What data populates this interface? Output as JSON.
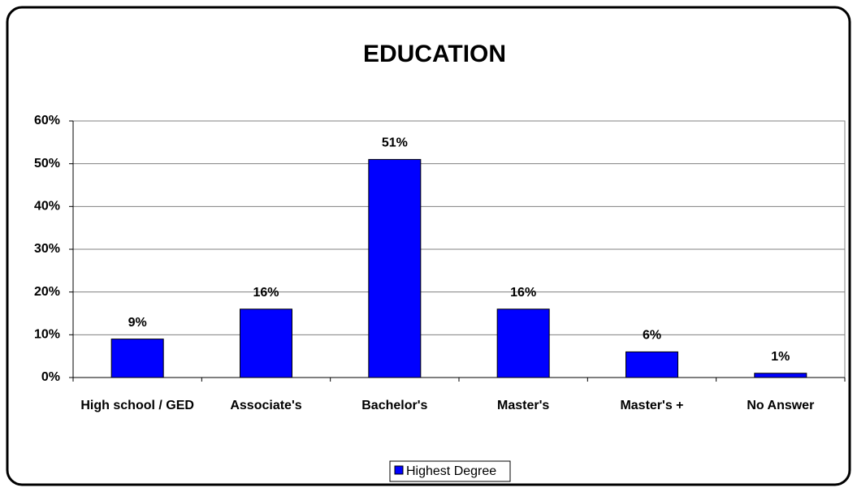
{
  "chart_data": {
    "type": "bar",
    "title": "EDUCATION",
    "categories": [
      "High school / GED",
      "Associate's",
      "Bachelor's",
      "Master's",
      "Master's +",
      "No Answer"
    ],
    "series": [
      {
        "name": "Highest Degree",
        "color": "#0000ff",
        "values": [
          9,
          16,
          51,
          16,
          6,
          1
        ],
        "value_labels": [
          "9%",
          "16%",
          "51%",
          "16%",
          "6%",
          "1%"
        ]
      }
    ],
    "ylim": [
      0,
      60
    ],
    "yticks": [
      {
        "value": 0,
        "label": "0%"
      },
      {
        "value": 10,
        "label": "10%"
      },
      {
        "value": 20,
        "label": "20%"
      },
      {
        "value": 30,
        "label": "30%"
      },
      {
        "value": 40,
        "label": "40%"
      },
      {
        "value": 50,
        "label": "50%"
      },
      {
        "value": 60,
        "label": "60%"
      }
    ],
    "grid": true,
    "legend": "bottom"
  }
}
